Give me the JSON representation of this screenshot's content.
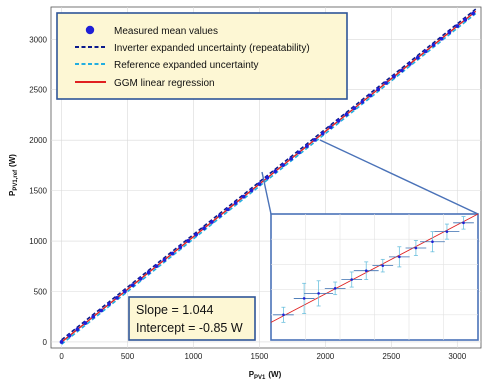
{
  "chart_data": {
    "type": "scatter",
    "xlabel": "P",
    "xlabel_sub": "PV1",
    "xlabel_unit": "(W)",
    "ylabel": "P",
    "ylabel_sub": "PV1,ref",
    "ylabel_unit": "(W)",
    "xlim": [
      -80,
      3180
    ],
    "ylim": [
      -60,
      3320
    ],
    "xticks": [
      0,
      500,
      1000,
      1500,
      2000,
      2500,
      3000
    ],
    "yticks": [
      0,
      500,
      1000,
      1500,
      2000,
      2500,
      3000
    ],
    "grid": true,
    "legend_position": "top-left",
    "legend": [
      {
        "label": "Measured mean values",
        "style": "marker",
        "color": "#1f1fd6"
      },
      {
        "label": "Inverter expanded uncertainty (repeatability)",
        "style": "dashed",
        "color": "#0b1a8c"
      },
      {
        "label": "Reference expanded uncertainty",
        "style": "dashed",
        "color": "#22aee0"
      },
      {
        "label": "GGM linear regression",
        "style": "solid",
        "color": "#e02020"
      }
    ],
    "regression": {
      "slope": 1.044,
      "intercept": -0.85
    },
    "series": [
      {
        "name": "Measured mean values",
        "x": [
          0,
          60,
          120,
          180,
          240,
          300,
          360,
          420,
          480,
          540,
          600,
          660,
          720,
          780,
          840,
          900,
          960,
          1020,
          1080,
          1140,
          1200,
          1260,
          1320,
          1380,
          1440,
          1500,
          1560,
          1620,
          1680,
          1740,
          1800,
          1860,
          1920,
          1980,
          2040,
          2100,
          2160,
          2220,
          2280,
          2340,
          2400,
          2460,
          2520,
          2580,
          2640,
          2700,
          2760,
          2820,
          2880,
          2940,
          3000,
          3060,
          3120
        ],
        "y": [
          0,
          62,
          124,
          187,
          250,
          312,
          375,
          437,
          500,
          563,
          626,
          688,
          751,
          813,
          876,
          939,
          1001,
          1064,
          1127,
          1189,
          1252,
          1314,
          1377,
          1440,
          1502,
          1565,
          1628,
          1690,
          1753,
          1816,
          1878,
          1941,
          2003,
          2066,
          2129,
          2191,
          2254,
          2317,
          2379,
          2442,
          2504,
          2567,
          2630,
          2692,
          2755,
          2817,
          2880,
          2943,
          3005,
          3068,
          3131,
          3193,
          3256
        ]
      }
    ],
    "inset": {
      "points": [
        {
          "x": 0.06,
          "y": 0.8,
          "ex": 0.05,
          "ey": 0.06
        },
        {
          "x": 0.16,
          "y": 0.67,
          "ex": 0.05,
          "ey": 0.12
        },
        {
          "x": 0.23,
          "y": 0.63,
          "ex": 0.07,
          "ey": 0.1
        },
        {
          "x": 0.31,
          "y": 0.59,
          "ex": 0.05,
          "ey": 0.05
        },
        {
          "x": 0.39,
          "y": 0.52,
          "ex": 0.05,
          "ey": 0.06
        },
        {
          "x": 0.46,
          "y": 0.45,
          "ex": 0.06,
          "ey": 0.07
        },
        {
          "x": 0.54,
          "y": 0.41,
          "ex": 0.05,
          "ey": 0.05
        },
        {
          "x": 0.62,
          "y": 0.34,
          "ex": 0.05,
          "ey": 0.08
        },
        {
          "x": 0.7,
          "y": 0.27,
          "ex": 0.05,
          "ey": 0.06
        },
        {
          "x": 0.78,
          "y": 0.22,
          "ex": 0.06,
          "ey": 0.08
        },
        {
          "x": 0.85,
          "y": 0.14,
          "ex": 0.06,
          "ey": 0.06
        },
        {
          "x": 0.93,
          "y": 0.07,
          "ex": 0.05,
          "ey": 0.05
        }
      ]
    }
  },
  "annotation": {
    "slope_text": "Slope = 1.044",
    "intercept_text": "Intercept = -0.85 W"
  }
}
